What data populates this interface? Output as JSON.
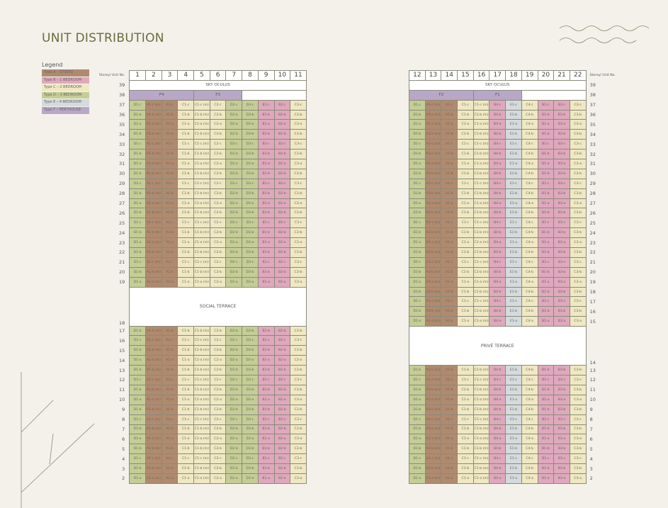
{
  "title": "UNIT DISTRIBUTION",
  "legend": {
    "title": "Legend",
    "items": [
      {
        "type": "A",
        "label": "Type A – STUDIO",
        "color": "#b08a6f"
      },
      {
        "type": "B",
        "label": "Type B – 1 BEDROOM",
        "color": "#dfa8bd"
      },
      {
        "type": "C",
        "label": "Type C – 2 BEDROOM",
        "color": "#efe8c3"
      },
      {
        "type": "D",
        "label": "Type D – 3 BEDROOM",
        "color": "#c4cd96"
      },
      {
        "type": "E",
        "label": "Type E – 4 BEDROOM",
        "color": "#d4dadd"
      },
      {
        "type": "F",
        "label": "Type F – PENTHOUSE",
        "color": "#b9a7c7"
      }
    ]
  },
  "storey_header": "Storey/ Unit No.",
  "left_table": {
    "sky_label": "SKY OCULUS",
    "sky_storey": "39",
    "penthouse_storey": "38",
    "penthouses": [
      {
        "label": "F4",
        "span": 4
      },
      {
        "label": "F3",
        "span": 3
      }
    ],
    "terrace_label": "SOCIAL TERRACE",
    "terrace_storey": "18",
    "columns": [
      {
        "no": "1",
        "unit": "D1",
        "type": "D"
      },
      {
        "no": "2",
        "unit": "A1",
        "mirror": true,
        "type": "A"
      },
      {
        "no": "3",
        "unit": "A1",
        "type": "A"
      },
      {
        "no": "4",
        "unit": "C1",
        "type": "C"
      },
      {
        "no": "5",
        "unit": "C1",
        "mirror": true,
        "type": "C"
      },
      {
        "no": "6",
        "unit": "C2",
        "type": "C"
      },
      {
        "no": "7",
        "unit": "D2",
        "type": "D"
      },
      {
        "no": "8",
        "unit": "D3",
        "type": "D"
      },
      {
        "no": "9",
        "unit": "B1",
        "type": "B"
      },
      {
        "no": "10",
        "unit": "B2",
        "type": "B"
      },
      {
        "no": "11",
        "unit": "C3",
        "type": "C"
      }
    ],
    "upper_rows": [
      {
        "storey": "37",
        "suffix": "c"
      },
      {
        "storey": "36",
        "suffix": "b"
      },
      {
        "storey": "35",
        "suffix": "a"
      },
      {
        "storey": "34",
        "suffix": "b"
      },
      {
        "storey": "33",
        "suffix": "c"
      },
      {
        "storey": "32",
        "suffix": "b"
      },
      {
        "storey": "31",
        "suffix": "a"
      },
      {
        "storey": "30",
        "suffix": "b"
      },
      {
        "storey": "29",
        "suffix": "c"
      },
      {
        "storey": "28",
        "suffix": "b"
      },
      {
        "storey": "27",
        "suffix": "a"
      },
      {
        "storey": "26",
        "suffix": "b"
      },
      {
        "storey": "25",
        "suffix": "c"
      },
      {
        "storey": "24",
        "suffix": "b"
      },
      {
        "storey": "23",
        "suffix": "a"
      },
      {
        "storey": "22",
        "suffix": "b"
      },
      {
        "storey": "21",
        "suffix": "c"
      },
      {
        "storey": "20",
        "suffix": "b"
      },
      {
        "storey": "19",
        "suffix": "a"
      }
    ],
    "lower_rows": [
      {
        "storey": "17",
        "suffix": "b"
      },
      {
        "storey": "16",
        "suffix": "c"
      },
      {
        "storey": "15",
        "suffix": "b"
      },
      {
        "storey": "14",
        "suffix": "a"
      },
      {
        "storey": "13",
        "suffix": "b"
      },
      {
        "storey": "12",
        "suffix": "c"
      },
      {
        "storey": "11",
        "suffix": "b"
      },
      {
        "storey": "10",
        "suffix": "a"
      },
      {
        "storey": "9",
        "suffix": "b"
      },
      {
        "storey": "8",
        "suffix": "c"
      },
      {
        "storey": "7",
        "suffix": "b"
      },
      {
        "storey": "6",
        "suffix": "a"
      },
      {
        "storey": "5",
        "suffix": "b"
      },
      {
        "storey": "4",
        "suffix": "c"
      },
      {
        "storey": "3",
        "suffix": "b"
      },
      {
        "storey": "2",
        "suffix": "a"
      }
    ]
  },
  "right_table": {
    "sky_label": "SKY OCULUS",
    "sky_storey": "39",
    "penthouse_storey": "38",
    "penthouses": [
      {
        "label": "F2",
        "span": 4
      },
      {
        "label": "F1",
        "span": 3
      }
    ],
    "terrace_label": "PRIVÉ TERRACE",
    "terrace_storey": "14",
    "columns": [
      {
        "no": "12",
        "unit": "D1",
        "type": "D"
      },
      {
        "no": "13",
        "unit": "A1",
        "mirror": true,
        "type": "A"
      },
      {
        "no": "14",
        "unit": "A1",
        "type": "A"
      },
      {
        "no": "15",
        "unit": "C1",
        "type": "C"
      },
      {
        "no": "16",
        "unit": "C1",
        "mirror": true,
        "type": "C"
      },
      {
        "no": "17",
        "unit": "B4",
        "type": "B"
      },
      {
        "no": "18",
        "unit": "E1",
        "type": "E"
      },
      {
        "no": "19",
        "unit": "C4",
        "type": "C"
      },
      {
        "no": "20",
        "unit": "B1",
        "type": "B"
      },
      {
        "no": "21",
        "unit": "B3",
        "type": "B"
      },
      {
        "no": "22",
        "unit": "C3",
        "type": "C"
      }
    ],
    "upper_rows": [
      {
        "storey": "37",
        "suffix": "c"
      },
      {
        "storey": "36",
        "suffix": "b"
      },
      {
        "storey": "35",
        "suffix": "a"
      },
      {
        "storey": "34",
        "suffix": "b"
      },
      {
        "storey": "33",
        "suffix": "c"
      },
      {
        "storey": "32",
        "suffix": "b"
      },
      {
        "storey": "31",
        "suffix": "a"
      },
      {
        "storey": "30",
        "suffix": "b"
      },
      {
        "storey": "29",
        "suffix": "c"
      },
      {
        "storey": "28",
        "suffix": "b"
      },
      {
        "storey": "27",
        "suffix": "a"
      },
      {
        "storey": "26",
        "suffix": "b"
      },
      {
        "storey": "25",
        "suffix": "c"
      },
      {
        "storey": "24",
        "suffix": "b"
      },
      {
        "storey": "23",
        "suffix": "a"
      },
      {
        "storey": "22",
        "suffix": "b"
      },
      {
        "storey": "21",
        "suffix": "c"
      },
      {
        "storey": "20",
        "suffix": "b"
      },
      {
        "storey": "19",
        "suffix": "a"
      },
      {
        "storey": "18",
        "suffix": "b"
      },
      {
        "storey": "17",
        "suffix": "c"
      },
      {
        "storey": "16",
        "suffix": "b"
      },
      {
        "storey": "15",
        "suffix": "a"
      }
    ],
    "lower_rows": [
      {
        "storey": "13",
        "suffix": "b"
      },
      {
        "storey": "12",
        "suffix": "c"
      },
      {
        "storey": "11",
        "suffix": "b"
      },
      {
        "storey": "10",
        "suffix": "a"
      },
      {
        "storey": "9",
        "suffix": "b"
      },
      {
        "storey": "8",
        "suffix": "c"
      },
      {
        "storey": "7",
        "suffix": "b"
      },
      {
        "storey": "6",
        "suffix": "a"
      },
      {
        "storey": "5",
        "suffix": "b"
      },
      {
        "storey": "4",
        "suffix": "c"
      },
      {
        "storey": "3",
        "suffix": "b"
      },
      {
        "storey": "2",
        "suffix": "a"
      }
    ]
  }
}
